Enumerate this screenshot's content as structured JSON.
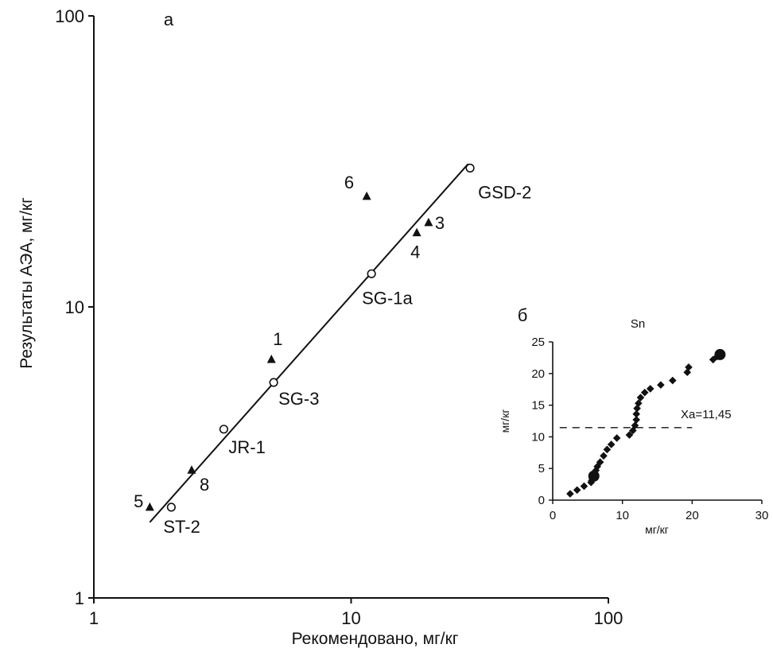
{
  "chart_data": [
    {
      "type": "scatter",
      "panel_label": "а",
      "xlabel": "Рекомендовано, мг/кг",
      "ylabel": "Результаты АЭА, мг/кг",
      "x_scale": "log",
      "y_scale": "log",
      "xlim": [
        1,
        100
      ],
      "ylim": [
        1,
        100
      ],
      "x_ticks": [
        "1",
        "10",
        "100"
      ],
      "y_ticks": [
        "1",
        "10",
        "100"
      ],
      "grid": false,
      "legend": "none",
      "fit_line": {
        "x": [
          1.65,
          28.5
        ],
        "y": [
          1.82,
          31.0
        ]
      },
      "series": [
        {
          "marker": "open-circle",
          "points": [
            {
              "x": 2.0,
              "y": 2.05,
              "label": "ST-2"
            },
            {
              "x": 3.2,
              "y": 3.8,
              "label": "JR-1"
            },
            {
              "x": 5.0,
              "y": 5.5,
              "label": "SG-3"
            },
            {
              "x": 12.0,
              "y": 13.0,
              "label": "SG-1a"
            },
            {
              "x": 29.0,
              "y": 30.0,
              "label": "GSD-2"
            }
          ]
        },
        {
          "marker": "filled-triangle",
          "points": [
            {
              "x": 1.65,
              "y": 2.05,
              "label": "5"
            },
            {
              "x": 2.4,
              "y": 2.75,
              "label": "8"
            },
            {
              "x": 4.9,
              "y": 6.6,
              "label": "1"
            },
            {
              "x": 11.5,
              "y": 24.0,
              "label": "6"
            },
            {
              "x": 18.0,
              "y": 18.0,
              "label": "4"
            },
            {
              "x": 20.0,
              "y": 19.5,
              "label": "3"
            }
          ]
        }
      ]
    },
    {
      "type": "scatter",
      "panel_label": "б",
      "title": "Sn",
      "xlabel": "мг/кг",
      "ylabel": "мг/кг",
      "xlim": [
        0,
        30
      ],
      "ylim": [
        0,
        25
      ],
      "x_ticks": [
        "0",
        "10",
        "20",
        "30"
      ],
      "y_ticks": [
        "0",
        "5",
        "10",
        "15",
        "20",
        "25"
      ],
      "grid": false,
      "legend": "none",
      "reference_line": {
        "y": 11.45,
        "x_range": [
          1,
          20
        ],
        "style": "dashed",
        "label": "Xa=11,45"
      },
      "points": [
        {
          "x": 2.5,
          "y": 1.0
        },
        {
          "x": 3.5,
          "y": 1.6
        },
        {
          "x": 4.5,
          "y": 2.2
        },
        {
          "x": 5.5,
          "y": 2.8
        },
        {
          "x": 5.6,
          "y": 3.1
        },
        {
          "x": 5.7,
          "y": 3.4
        },
        {
          "x": 5.8,
          "y": 3.7
        },
        {
          "x": 5.9,
          "y": 4.0
        },
        {
          "x": 6.0,
          "y": 4.3
        },
        {
          "x": 6.2,
          "y": 4.7
        },
        {
          "x": 6.4,
          "y": 5.3
        },
        {
          "x": 6.8,
          "y": 6.0
        },
        {
          "x": 7.3,
          "y": 7.0
        },
        {
          "x": 7.8,
          "y": 8.0
        },
        {
          "x": 8.4,
          "y": 8.8
        },
        {
          "x": 9.2,
          "y": 9.8
        },
        {
          "x": 11.0,
          "y": 10.3
        },
        {
          "x": 11.5,
          "y": 11.0
        },
        {
          "x": 11.8,
          "y": 11.8
        },
        {
          "x": 12.0,
          "y": 12.7
        },
        {
          "x": 12.0,
          "y": 13.6
        },
        {
          "x": 12.1,
          "y": 14.5
        },
        {
          "x": 12.3,
          "y": 15.3
        },
        {
          "x": 12.6,
          "y": 16.2
        },
        {
          "x": 13.2,
          "y": 17.0
        },
        {
          "x": 14.0,
          "y": 17.6
        },
        {
          "x": 15.5,
          "y": 18.2
        },
        {
          "x": 17.2,
          "y": 18.9
        },
        {
          "x": 19.3,
          "y": 20.2
        },
        {
          "x": 19.5,
          "y": 21.0
        },
        {
          "x": 23.0,
          "y": 22.2
        },
        {
          "x": 23.6,
          "y": 22.7
        },
        {
          "x": 24.2,
          "y": 23.2
        }
      ]
    }
  ]
}
